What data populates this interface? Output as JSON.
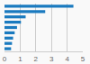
{
  "chart_data": {
    "type": "bar",
    "orientation": "horizontal",
    "categories": [
      null,
      null,
      null,
      null,
      null,
      null,
      null,
      null,
      null
    ],
    "values": [
      4.4,
      2.6,
      1.35,
      1.05,
      0.8,
      0.65,
      0.55,
      0.48,
      0.42
    ],
    "color": "#1a7abf",
    "xlim": [
      0,
      5
    ],
    "xticks": [
      0,
      1,
      2,
      3,
      4,
      5
    ],
    "grid": true,
    "tick_labels": "x"
  }
}
